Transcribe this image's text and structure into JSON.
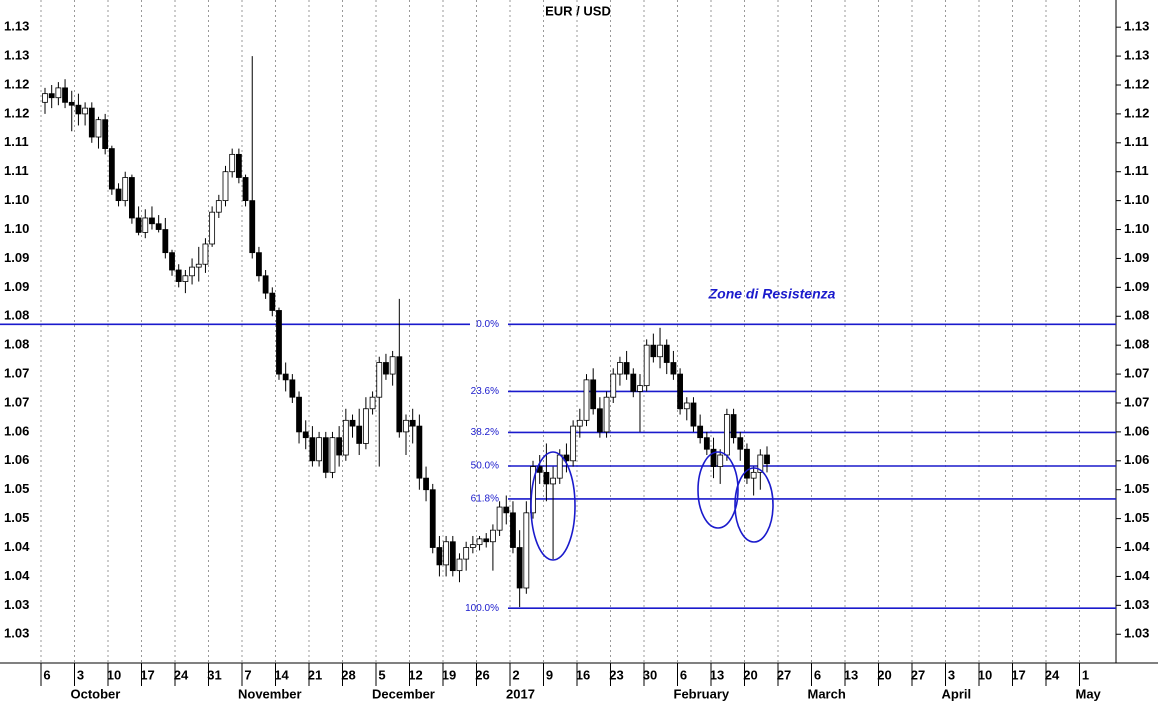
{
  "chart_data": {
    "type": "candlestick",
    "title": "EUR / USD",
    "annotation": "Zone di Resistenza",
    "color_up": "#ffffff",
    "color_down": "#000000",
    "line_color": "#1a1acc",
    "ylim": [
      1.0202,
      1.1347
    ],
    "yticks": [
      {
        "value": 1.025,
        "label": "1.03"
      },
      {
        "value": 1.03,
        "label": "1.03"
      },
      {
        "value": 1.035,
        "label": "1.04"
      },
      {
        "value": 1.04,
        "label": "1.04"
      },
      {
        "value": 1.045,
        "label": "1.05"
      },
      {
        "value": 1.05,
        "label": "1.05"
      },
      {
        "value": 1.055,
        "label": "1.06"
      },
      {
        "value": 1.06,
        "label": "1.06"
      },
      {
        "value": 1.065,
        "label": "1.07"
      },
      {
        "value": 1.07,
        "label": "1.07"
      },
      {
        "value": 1.075,
        "label": "1.08"
      },
      {
        "value": 1.08,
        "label": "1.08"
      },
      {
        "value": 1.085,
        "label": "1.09"
      },
      {
        "value": 1.09,
        "label": "1.09"
      },
      {
        "value": 1.095,
        "label": "1.10"
      },
      {
        "value": 1.1,
        "label": "1.10"
      },
      {
        "value": 1.105,
        "label": "1.11"
      },
      {
        "value": 1.11,
        "label": "1.11"
      },
      {
        "value": 1.115,
        "label": "1.12"
      },
      {
        "value": 1.12,
        "label": "1.12"
      },
      {
        "value": 1.125,
        "label": "1.13"
      },
      {
        "value": 1.13,
        "label": "1.13"
      }
    ],
    "categories": [
      "6",
      "3",
      "10",
      "17",
      "24",
      "31",
      "7",
      "14",
      "21",
      "28",
      "5",
      "12",
      "19",
      "26",
      "2",
      "9",
      "16",
      "23",
      "30",
      "6",
      "13",
      "20",
      "27",
      "6",
      "13",
      "20",
      "27",
      "3",
      "10",
      "17",
      "24",
      "1"
    ],
    "months": [
      "October",
      "November",
      "December",
      "2017",
      "February",
      "March",
      "April",
      "May"
    ],
    "fib_levels": [
      {
        "label": "0.0%",
        "value": 1.0786
      },
      {
        "label": "23.6%",
        "value": 1.067
      },
      {
        "label": "38.2%",
        "value": 1.0599
      },
      {
        "label": "50.0%",
        "value": 1.0541
      },
      {
        "label": "61.8%",
        "value": 1.0484
      },
      {
        "label": "100.0%",
        "value": 1.0295
      }
    ],
    "open": [
      1.117,
      1.1185,
      1.1178,
      1.1195,
      1.117,
      1.1165,
      1.115,
      1.116,
      1.111,
      1.114,
      1.109,
      1.102,
      1.1,
      1.104,
      1.097,
      1.0945,
      1.097,
      1.096,
      1.095,
      1.091,
      1.088,
      1.086,
      1.087,
      1.0885,
      1.089,
      1.0925,
      1.098,
      1.1,
      1.105,
      1.108,
      1.104,
      1.1,
      1.091,
      1.087,
      1.084,
      1.081,
      1.07,
      1.069,
      1.066,
      1.06,
      1.059,
      1.055,
      1.059,
      1.053,
      1.059,
      1.056,
      1.062,
      1.061,
      1.058,
      1.064,
      1.066,
      1.072,
      1.07,
      1.073,
      1.06,
      1.062,
      1.061,
      1.052,
      1.05,
      1.04,
      1.037,
      1.041,
      1.036,
      1.038,
      1.04,
      1.0405,
      1.0415,
      1.041,
      1.043,
      1.047,
      1.046,
      1.04,
      1.033,
      1.046,
      1.054,
      1.053,
      1.051,
      1.052,
      1.056,
      1.055,
      1.061,
      1.062,
      1.069,
      1.064,
      1.06,
      1.066,
      1.07,
      1.072,
      1.07,
      1.067,
      1.068,
      1.075,
      1.073,
      1.075,
      1.072,
      1.07,
      1.064,
      1.065,
      1.061,
      1.059,
      1.057,
      1.054,
      1.056,
      1.063,
      1.059,
      1.057,
      1.052,
      1.053,
      1.056
    ],
    "high": [
      1.1195,
      1.12,
      1.1205,
      1.121,
      1.119,
      1.1185,
      1.117,
      1.117,
      1.1145,
      1.115,
      1.1095,
      1.103,
      1.105,
      1.1045,
      1.099,
      1.0985,
      1.099,
      1.0975,
      1.097,
      1.0915,
      1.089,
      1.088,
      1.09,
      1.092,
      1.0935,
      1.099,
      1.101,
      1.106,
      1.109,
      1.109,
      1.1045,
      1.125,
      1.092,
      1.088,
      1.085,
      1.0815,
      1.072,
      1.07,
      1.067,
      1.062,
      1.061,
      1.06,
      1.06,
      1.06,
      1.061,
      1.064,
      1.063,
      1.064,
      1.066,
      1.067,
      1.073,
      1.0735,
      1.074,
      1.083,
      1.063,
      1.064,
      1.063,
      1.054,
      1.051,
      1.042,
      1.042,
      1.042,
      1.039,
      1.041,
      1.042,
      1.042,
      1.0425,
      1.044,
      1.048,
      1.049,
      1.048,
      1.043,
      1.048,
      1.055,
      1.056,
      1.058,
      1.054,
      1.057,
      1.058,
      1.062,
      1.064,
      1.07,
      1.071,
      1.066,
      1.067,
      1.071,
      1.073,
      1.074,
      1.071,
      1.07,
      1.076,
      1.077,
      1.078,
      1.076,
      1.074,
      1.071,
      1.066,
      1.066,
      1.063,
      1.06,
      1.059,
      1.057,
      1.064,
      1.064,
      1.06,
      1.058,
      1.054,
      1.057,
      1.0575
    ],
    "low": [
      1.115,
      1.116,
      1.1165,
      1.116,
      1.112,
      1.113,
      1.113,
      1.11,
      1.109,
      1.108,
      1.101,
      1.099,
      1.099,
      1.096,
      1.094,
      1.0935,
      1.095,
      1.0945,
      1.09,
      1.087,
      1.085,
      1.084,
      1.0855,
      1.086,
      1.0875,
      1.092,
      1.097,
      1.099,
      1.104,
      1.103,
      1.099,
      1.09,
      1.086,
      1.083,
      1.08,
      1.069,
      1.067,
      1.065,
      1.058,
      1.057,
      1.054,
      1.054,
      1.052,
      1.052,
      1.054,
      1.055,
      1.059,
      1.056,
      1.057,
      1.063,
      1.054,
      1.069,
      1.068,
      1.059,
      1.056,
      1.058,
      1.05,
      1.048,
      1.039,
      1.035,
      1.035,
      1.035,
      1.034,
      1.036,
      1.039,
      1.0395,
      1.04,
      1.036,
      1.042,
      1.044,
      1.039,
      1.0297,
      1.032,
      1.045,
      1.051,
      1.048,
      1.038,
      1.051,
      1.053,
      1.054,
      1.059,
      1.061,
      1.063,
      1.059,
      1.059,
      1.065,
      1.068,
      1.069,
      1.066,
      1.06,
      1.067,
      1.072,
      1.071,
      1.07,
      1.069,
      1.063,
      1.062,
      1.06,
      1.058,
      1.056,
      1.052,
      1.051,
      1.055,
      1.058,
      1.055,
      1.051,
      1.049,
      1.05,
      1.053
    ],
    "close": [
      1.1185,
      1.1178,
      1.1195,
      1.117,
      1.1165,
      1.115,
      1.116,
      1.111,
      1.114,
      1.109,
      1.102,
      1.1,
      1.104,
      1.097,
      1.0945,
      1.097,
      1.096,
      1.095,
      1.091,
      1.088,
      1.086,
      1.087,
      1.0885,
      1.089,
      1.0925,
      1.098,
      1.1,
      1.105,
      1.108,
      1.104,
      1.1,
      1.091,
      1.087,
      1.084,
      1.081,
      1.07,
      1.069,
      1.066,
      1.06,
      1.059,
      1.055,
      1.059,
      1.053,
      1.059,
      1.056,
      1.062,
      1.061,
      1.058,
      1.064,
      1.066,
      1.072,
      1.07,
      1.073,
      1.06,
      1.062,
      1.061,
      1.052,
      1.05,
      1.04,
      1.037,
      1.041,
      1.036,
      1.038,
      1.04,
      1.0405,
      1.0415,
      1.041,
      1.043,
      1.047,
      1.046,
      1.04,
      1.033,
      1.046,
      1.054,
      1.053,
      1.051,
      1.052,
      1.056,
      1.055,
      1.061,
      1.062,
      1.069,
      1.064,
      1.06,
      1.066,
      1.07,
      1.072,
      1.07,
      1.067,
      1.068,
      1.075,
      1.073,
      1.075,
      1.072,
      1.07,
      1.064,
      1.065,
      1.061,
      1.059,
      1.057,
      1.054,
      1.056,
      1.063,
      1.059,
      1.057,
      1.052,
      1.053,
      1.056,
      1.0545
    ]
  }
}
